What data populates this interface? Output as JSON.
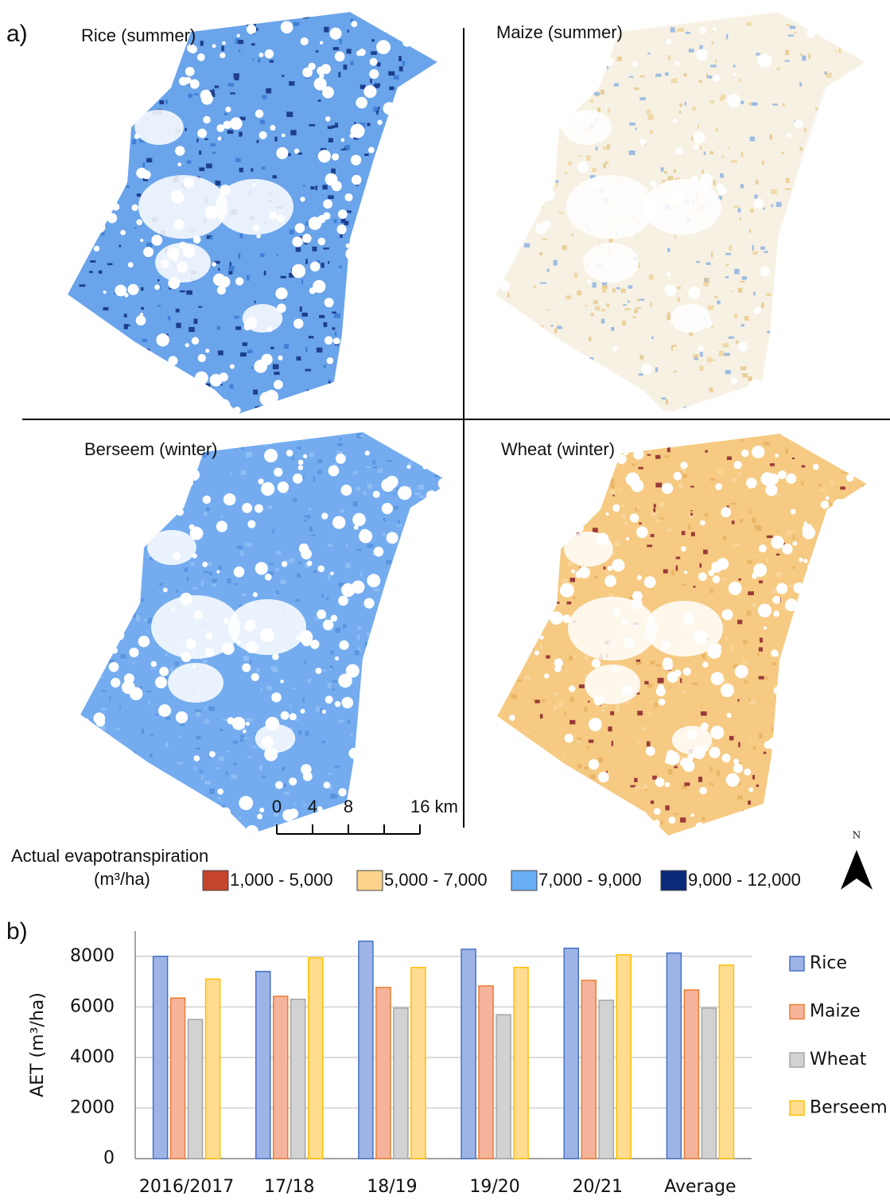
{
  "panel_a": {
    "label": "a)",
    "maps": [
      {
        "title": "Rice (summer)"
      },
      {
        "title": "Maize (summer)"
      },
      {
        "title": "Berseem (winter)"
      },
      {
        "title": "Wheat (winter)"
      }
    ],
    "legend": {
      "title": "Actual evapotranspiration",
      "unit": "(m³/ha)",
      "classes": [
        {
          "label": "1,000 - 5,000",
          "color": "#c4452c"
        },
        {
          "label": "5,000 - 7,000",
          "color": "#fbd38d"
        },
        {
          "label": "7,000 - 9,000",
          "color": "#6aaef5"
        },
        {
          "label": "9,000 - 12,000",
          "color": "#0c2a7a"
        }
      ]
    },
    "scale_bar": [
      "0",
      "4",
      "8",
      "16 km"
    ],
    "north": "N"
  },
  "chart_data": {
    "type": "bar",
    "label": "b)",
    "y_label": "AET (m³/ha)",
    "categories": [
      "2016/2017",
      "17/18",
      "18/19",
      "19/20",
      "20/21",
      "Average"
    ],
    "series": [
      {
        "name": "Rice",
        "color": "#9fb4e6",
        "values": [
          8000,
          7400,
          8600,
          8280,
          8320,
          8130
        ]
      },
      {
        "name": "Maize",
        "color": "#f6b39b",
        "values": [
          6350,
          6420,
          6770,
          6830,
          7050,
          6670
        ]
      },
      {
        "name": "Wheat",
        "color": "#d2d2d2",
        "values": [
          5500,
          6300,
          5950,
          5690,
          6260,
          5950
        ]
      },
      {
        "name": "Berseem",
        "color": "#ffdc8f",
        "values": [
          7100,
          7940,
          7560,
          7560,
          8060,
          7650
        ]
      }
    ],
    "ylim": [
      0,
      9000
    ],
    "yticks": [
      0,
      2000,
      4000,
      6000,
      8000
    ],
    "grid": true
  }
}
